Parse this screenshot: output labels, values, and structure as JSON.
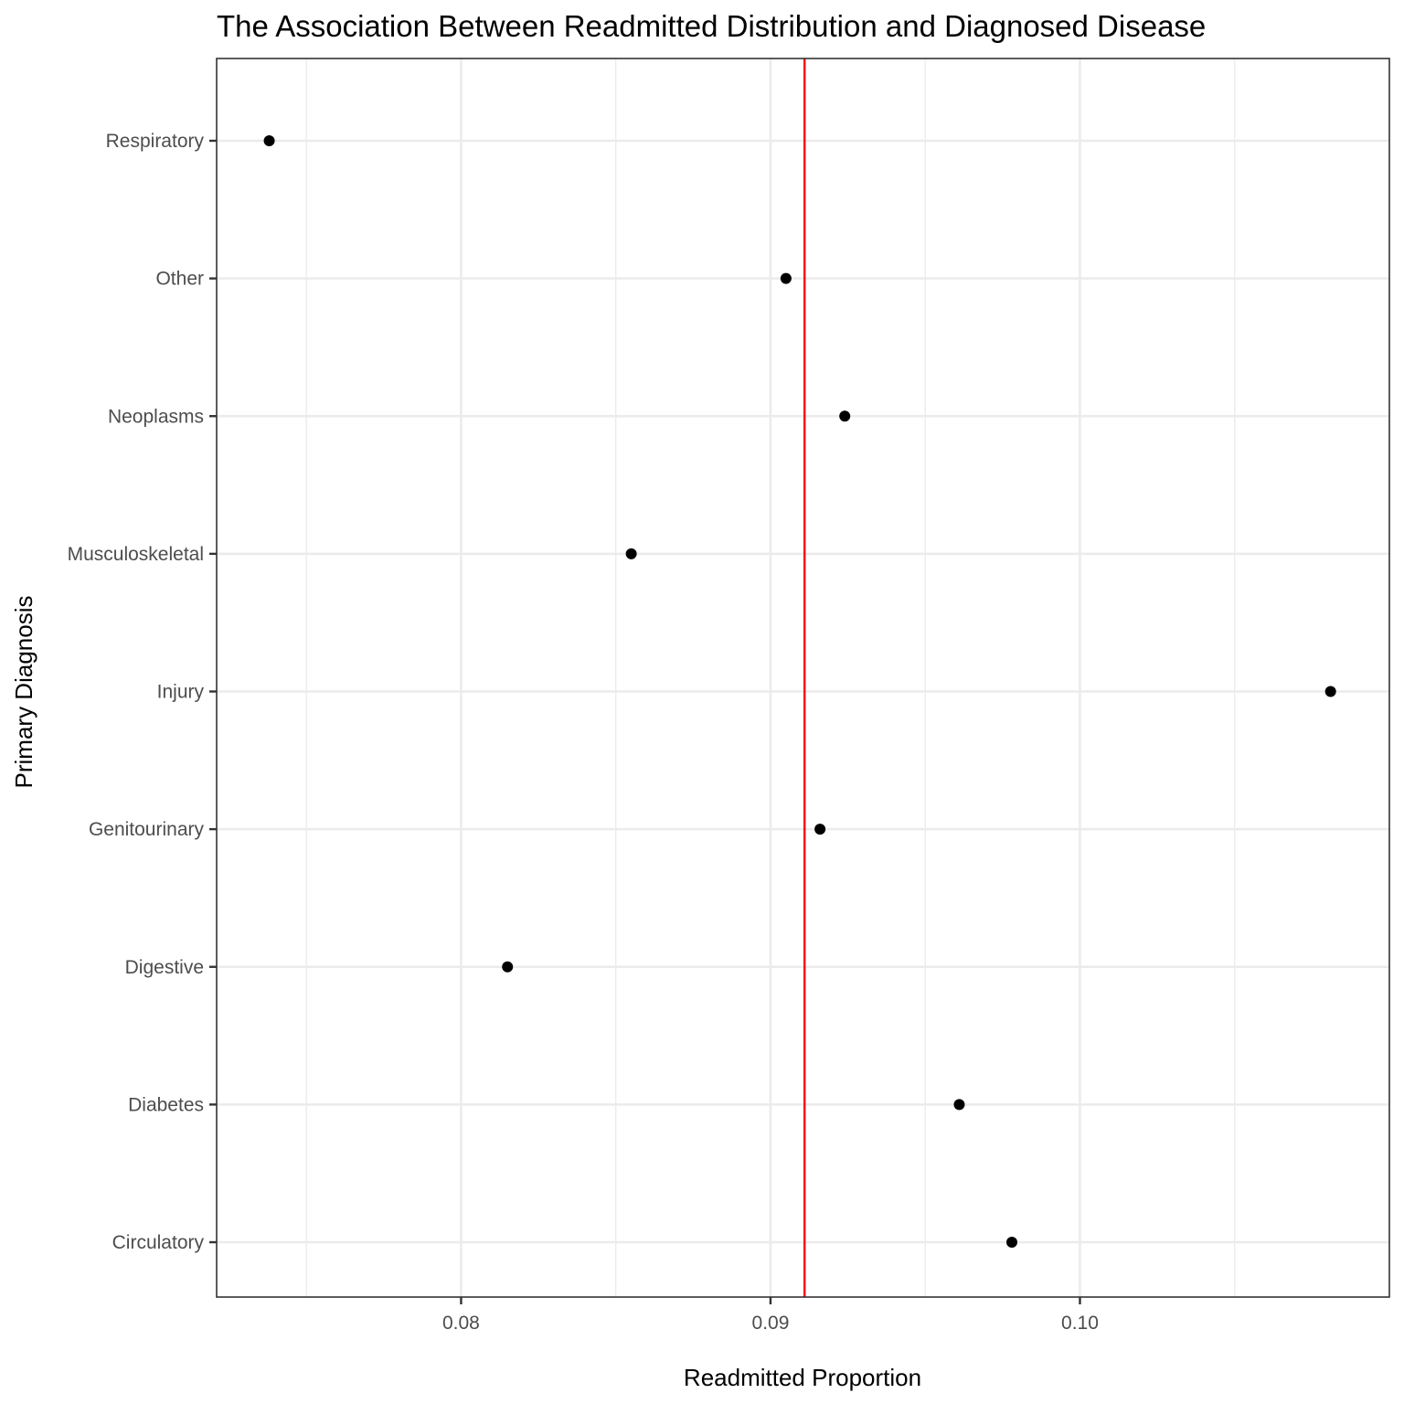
{
  "chart_data": {
    "type": "scatter",
    "title": "The Association Between Readmitted Distribution and Diagnosed Disease",
    "xlabel": "Readmitted Proportion",
    "ylabel": "Primary Diagnosis",
    "xlim": [
      0.0721,
      0.11
    ],
    "x_ticks": [
      0.08,
      0.09,
      0.1
    ],
    "x_tick_labels": [
      "0.08",
      "0.09",
      "0.10"
    ],
    "x_minor_ticks": [
      0.075,
      0.085,
      0.095,
      0.105
    ],
    "categories": [
      "Circulatory",
      "Diabetes",
      "Digestive",
      "Genitourinary",
      "Injury",
      "Musculoskeletal",
      "Neoplasms",
      "Other",
      "Respiratory"
    ],
    "values": [
      0.0978,
      0.0961,
      0.0815,
      0.0916,
      0.1081,
      0.0855,
      0.0924,
      0.0905,
      0.0738
    ],
    "reference_line": {
      "x": 0.0911,
      "color": "#ff0000"
    },
    "point_color": "#000000",
    "grid": true,
    "legend": "none"
  }
}
